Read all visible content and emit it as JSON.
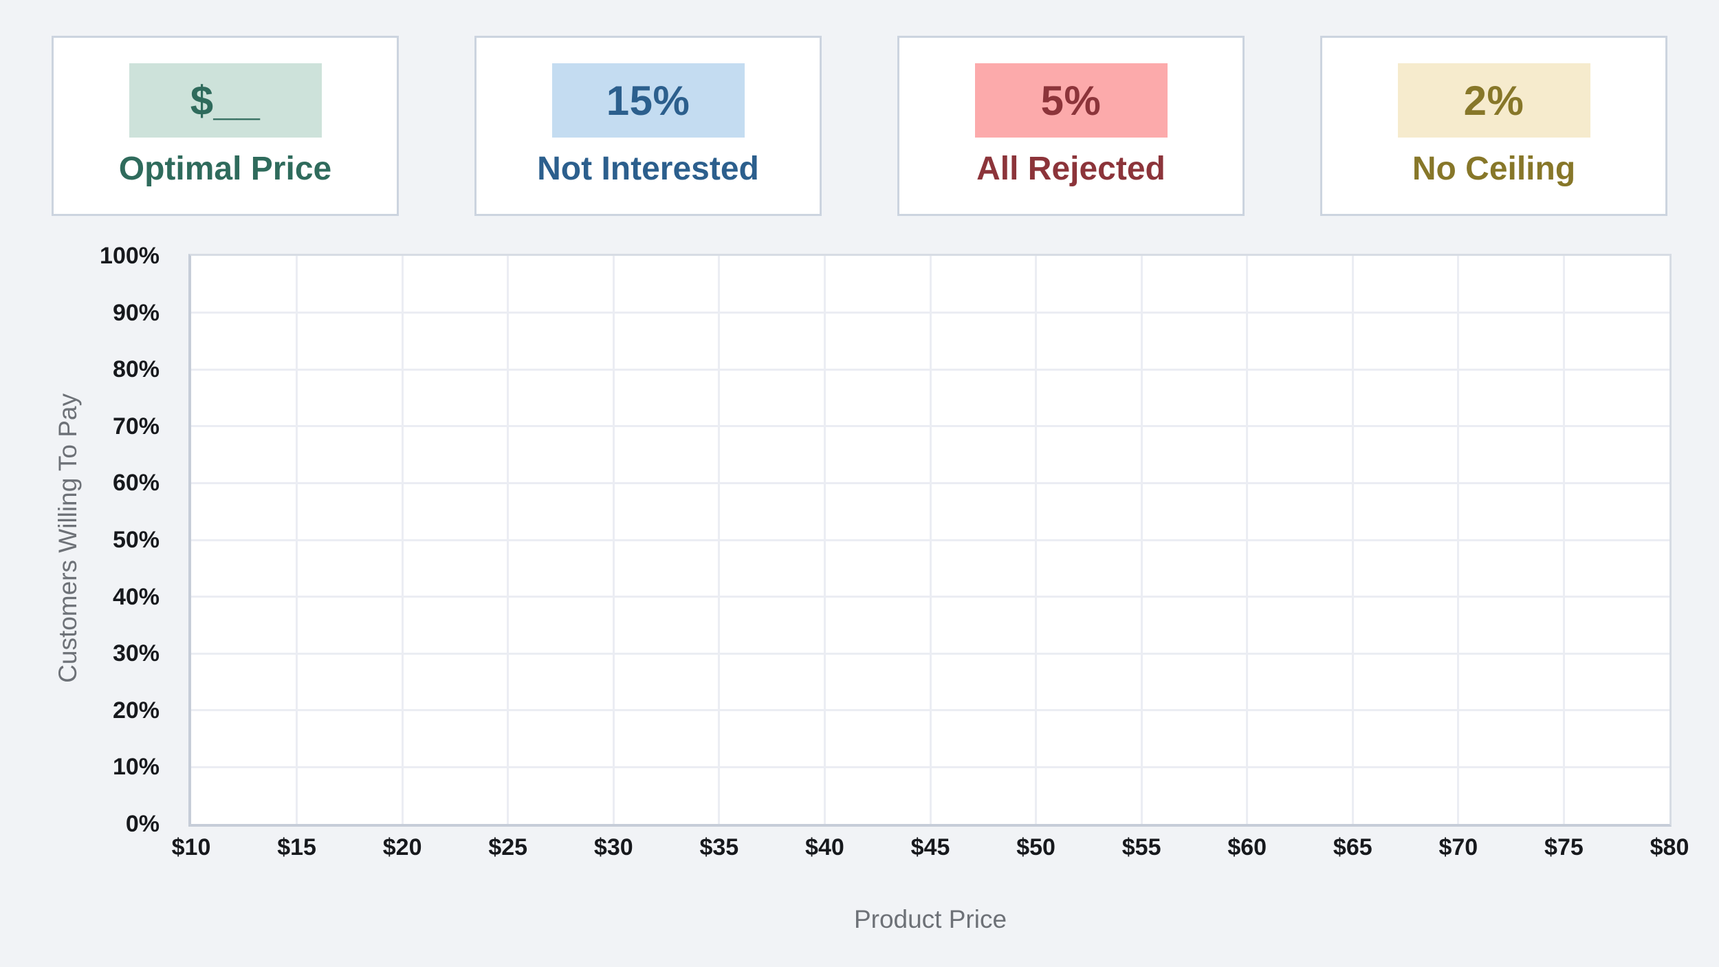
{
  "cards": [
    {
      "id": "optimal-price",
      "value": "$__",
      "label": "Optimal Price",
      "value_bg": "#cde2da",
      "text_color": "#2f6b5c"
    },
    {
      "id": "not-interested",
      "value": "15%",
      "label": "Not Interested",
      "value_bg": "#c4dcf1",
      "text_color": "#2c5f8d"
    },
    {
      "id": "all-rejected",
      "value": "5%",
      "label": "All Rejected",
      "value_bg": "#fcaaab",
      "text_color": "#8c343a"
    },
    {
      "id": "no-ceiling",
      "value": "2%",
      "label": "No Ceiling",
      "value_bg": "#f6ebcd",
      "text_color": "#877729"
    }
  ],
  "chart_data": {
    "type": "line",
    "title": "",
    "xlabel": "Product Price",
    "ylabel": "Customers Willing To Pay",
    "x_ticks": [
      "$10",
      "$15",
      "$20",
      "$25",
      "$30",
      "$35",
      "$40",
      "$45",
      "$50",
      "$55",
      "$60",
      "$65",
      "$70",
      "$75",
      "$80"
    ],
    "y_ticks": [
      "0%",
      "10%",
      "20%",
      "30%",
      "40%",
      "50%",
      "60%",
      "70%",
      "80%",
      "90%",
      "100%"
    ],
    "xlim": [
      10,
      80
    ],
    "ylim": [
      0,
      100
    ],
    "grid": true,
    "legend": "none",
    "series": []
  },
  "colors": {
    "page_bg": "#f1f3f6",
    "plot_bg": "#ffffff",
    "gridline": "#ebedf3",
    "card_border": "#ccd4df",
    "tick_text": "#17191d",
    "axis_title_text": "#6d7177"
  }
}
